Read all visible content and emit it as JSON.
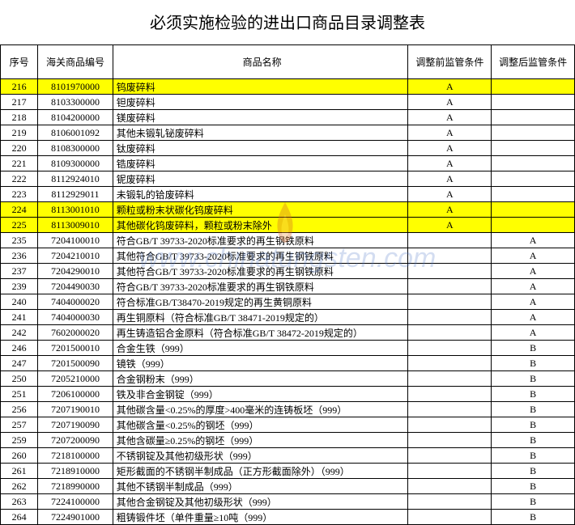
{
  "title": "必须实施检验的进出口商品目录调整表",
  "headers": {
    "seq": "序号",
    "code": "海关商品编号",
    "name": "商品名称",
    "before": "调整前监管条件",
    "after": "调整后监管条件"
  },
  "watermark": "www.chinatungsten.com",
  "rows": [
    {
      "seq": "216",
      "code": "8101970000",
      "name": "钨废碎料",
      "before": "A",
      "after": "",
      "hl": true
    },
    {
      "seq": "217",
      "code": "8103300000",
      "name": "钽废碎料",
      "before": "A",
      "after": "",
      "hl": false
    },
    {
      "seq": "218",
      "code": "8104200000",
      "name": "镁废碎料",
      "before": "A",
      "after": "",
      "hl": false
    },
    {
      "seq": "219",
      "code": "8106001092",
      "name": "其他未锻轧铋废碎料",
      "before": "A",
      "after": "",
      "hl": false
    },
    {
      "seq": "220",
      "code": "8108300000",
      "name": "钛废碎料",
      "before": "A",
      "after": "",
      "hl": false
    },
    {
      "seq": "221",
      "code": "8109300000",
      "name": "锆废碎料",
      "before": "A",
      "after": "",
      "hl": false
    },
    {
      "seq": "222",
      "code": "8112924010",
      "name": "铌废碎料",
      "before": "A",
      "after": "",
      "hl": false
    },
    {
      "seq": "223",
      "code": "8112929011",
      "name": "未锻轧的铪废碎料",
      "before": "A",
      "after": "",
      "hl": false
    },
    {
      "seq": "224",
      "code": "8113001010",
      "name": "颗粒或粉末状碳化钨废碎料",
      "before": "A",
      "after": "",
      "hl": true
    },
    {
      "seq": "225",
      "code": "8113009010",
      "name": "其他碳化钨废碎料，颗粒或粉末除外",
      "before": "A",
      "after": "",
      "hl": true
    },
    {
      "seq": "235",
      "code": "7204100010",
      "name": "符合GB/T 39733-2020标准要求的再生钢铁原料",
      "before": "",
      "after": "A",
      "hl": false
    },
    {
      "seq": "236",
      "code": "7204210010",
      "name": "其他符合GB/T 39733-2020标准要求的再生钢铁原料",
      "before": "",
      "after": "A",
      "hl": false
    },
    {
      "seq": "237",
      "code": "7204290010",
      "name": "其他符合GB/T 39733-2020标准要求的再生钢铁原料",
      "before": "",
      "after": "A",
      "hl": false
    },
    {
      "seq": "239",
      "code": "7204490030",
      "name": "符合GB/T 39733-2020标准要求的再生钢铁原料",
      "before": "",
      "after": "A",
      "hl": false
    },
    {
      "seq": "240",
      "code": "7404000020",
      "name": "符合标准GB/T38470-2019规定的再生黄铜原料",
      "before": "",
      "after": "A",
      "hl": false
    },
    {
      "seq": "241",
      "code": "7404000030",
      "name": "再生铜原料（符合标准GB/T 38471-2019规定的）",
      "before": "",
      "after": "A",
      "hl": false
    },
    {
      "seq": "242",
      "code": "7602000020",
      "name": "再生铸造铝合金原料（符合标准GB/T 38472-2019规定的）",
      "before": "",
      "after": "A",
      "hl": false
    },
    {
      "seq": "246",
      "code": "7201500010",
      "name": "合金生铁（999）",
      "before": "",
      "after": "B",
      "hl": false
    },
    {
      "seq": "247",
      "code": "7201500090",
      "name": "镜铁（999）",
      "before": "",
      "after": "B",
      "hl": false
    },
    {
      "seq": "250",
      "code": "7205210000",
      "name": "合金钢粉末（999）",
      "before": "",
      "after": "B",
      "hl": false
    },
    {
      "seq": "251",
      "code": "7206100000",
      "name": "铁及非合金钢锭（999）",
      "before": "",
      "after": "B",
      "hl": false
    },
    {
      "seq": "256",
      "code": "7207190010",
      "name": "其他碳含量<0.25%的厚度>400毫米的连铸板坯（999）",
      "before": "",
      "after": "B",
      "hl": false
    },
    {
      "seq": "257",
      "code": "7207190090",
      "name": "其他碳含量<0.25%的钢坯（999）",
      "before": "",
      "after": "B",
      "hl": false
    },
    {
      "seq": "259",
      "code": "7207200090",
      "name": "其他含碳量≥0.25%的钢坯（999）",
      "before": "",
      "after": "B",
      "hl": false
    },
    {
      "seq": "260",
      "code": "7218100000",
      "name": "不锈钢锭及其他初级形状（999）",
      "before": "",
      "after": "B",
      "hl": false
    },
    {
      "seq": "261",
      "code": "7218910000",
      "name": "矩形截面的不锈钢半制成品（正方形截面除外）（999）",
      "before": "",
      "after": "B",
      "hl": false
    },
    {
      "seq": "262",
      "code": "7218990000",
      "name": "其他不锈钢半制成品（999）",
      "before": "",
      "after": "B",
      "hl": false
    },
    {
      "seq": "263",
      "code": "7224100000",
      "name": "其他合金钢锭及其他初级形状（999）",
      "before": "",
      "after": "B",
      "hl": false
    },
    {
      "seq": "264",
      "code": "7224901000",
      "name": "粗铸锻件坯（单件重量≥10吨（999）",
      "before": "",
      "after": "B",
      "hl": false
    }
  ]
}
